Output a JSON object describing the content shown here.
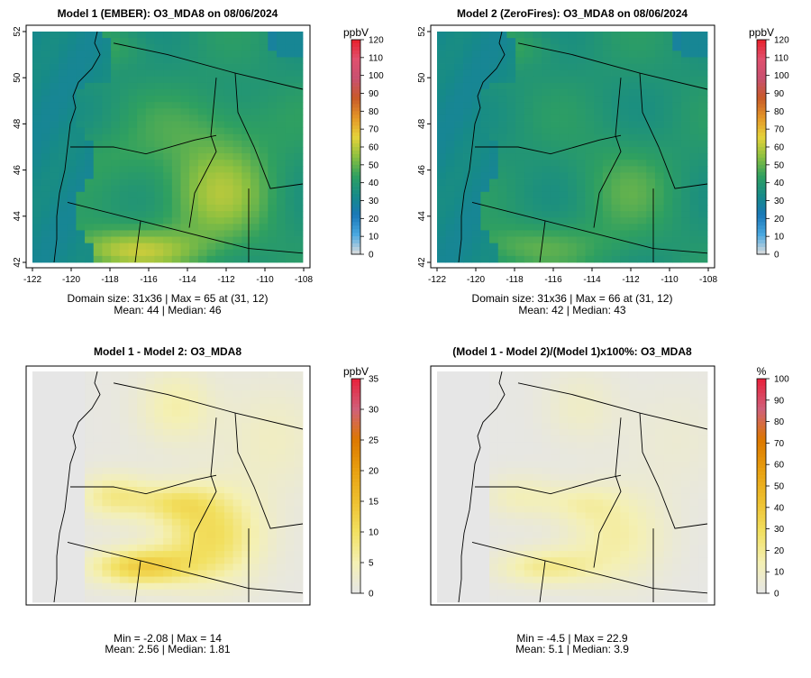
{
  "figure": {
    "panels": [
      {
        "id": "model1",
        "title": "Model 1 (EMBER): O3_MDA8 on 08/06/2024",
        "colorbar": {
          "unit": "ppbV",
          "ticks": [
            "0",
            "10",
            "20",
            "30",
            "40",
            "50",
            "60",
            "70",
            "80",
            "90",
            "100",
            "110",
            "120"
          ]
        },
        "stats": [
          "Domain size: 31x36 | Max = 65 at (31, 12)",
          "Mean: 44 |  Median: 46"
        ],
        "x_ticks": [
          "-122",
          "-120",
          "-118",
          "-116",
          "-114",
          "-112",
          "-110",
          "-108"
        ],
        "y_ticks": [
          "42",
          "44",
          "46",
          "48",
          "50",
          "52"
        ]
      },
      {
        "id": "model2",
        "title": "Model 2 (ZeroFires): O3_MDA8 on 08/06/2024",
        "colorbar": {
          "unit": "ppbV",
          "ticks": [
            "0",
            "10",
            "20",
            "30",
            "40",
            "50",
            "60",
            "70",
            "80",
            "90",
            "100",
            "110",
            "120"
          ]
        },
        "stats": [
          "Domain size: 31x36 | Max = 66 at (31, 12)",
          "Mean: 42 |  Median: 43"
        ],
        "x_ticks": [
          "-122",
          "-120",
          "-118",
          "-116",
          "-114",
          "-112",
          "-110",
          "-108"
        ],
        "y_ticks": [
          "42",
          "44",
          "46",
          "48",
          "50",
          "52"
        ]
      },
      {
        "id": "diff",
        "title": "Model 1 - Model 2: O3_MDA8",
        "colorbar": {
          "unit": "ppbV",
          "ticks": [
            "0",
            "5",
            "10",
            "15",
            "20",
            "25",
            "30",
            "35"
          ]
        },
        "stats": [
          "Min = -2.08 | Max = 14",
          "Mean: 2.56 |  Median: 1.81"
        ]
      },
      {
        "id": "pctdiff",
        "title": "(Model 1 - Model 2)/(Model 1)x100%: O3_MDA8",
        "colorbar": {
          "unit": "%",
          "ticks": [
            "0",
            "10",
            "20",
            "30",
            "40",
            "50",
            "60",
            "70",
            "80",
            "90",
            "100"
          ]
        },
        "stats": [
          "Min = -4.5 | Max = 22.9",
          "Mean: 5.1 |  Median: 3.9"
        ]
      }
    ]
  },
  "colors": {
    "ozone_scale": [
      "#dcdcdc",
      "#4aa8e0",
      "#1a78b8",
      "#168a88",
      "#2fa060",
      "#8cc040",
      "#e6d23a",
      "#e49628",
      "#c85a28",
      "#c85070",
      "#e0506e",
      "#e8202a"
    ],
    "diff_scale": [
      "#e6e6e6",
      "#f4f0b4",
      "#f2e060",
      "#eec030",
      "#e8a010",
      "#dc7800",
      "#d0607a",
      "#e8203a"
    ],
    "ocean": "#4aa8e0",
    "land_base": "#1a78b8"
  },
  "chart_data": [
    {
      "type": "heatmap",
      "title": "Model 1 (EMBER): O3_MDA8 on 08/06/2024",
      "xlim": [
        -122,
        -108
      ],
      "ylim": [
        42,
        52
      ],
      "colorbar": {
        "label": "ppbV",
        "range": [
          0,
          120
        ]
      },
      "grid": [
        31,
        36
      ],
      "max": 65,
      "max_at": [
        31,
        12
      ],
      "mean": 44,
      "median": 46
    },
    {
      "type": "heatmap",
      "title": "Model 2 (ZeroFires): O3_MDA8 on 08/06/2024",
      "xlim": [
        -122,
        -108
      ],
      "ylim": [
        42,
        52
      ],
      "colorbar": {
        "label": "ppbV",
        "range": [
          0,
          120
        ]
      },
      "grid": [
        31,
        36
      ],
      "max": 66,
      "max_at": [
        31,
        12
      ],
      "mean": 42,
      "median": 43
    },
    {
      "type": "heatmap",
      "title": "Model 1 - Model 2: O3_MDA8",
      "colorbar": {
        "label": "ppbV",
        "range": [
          0,
          35
        ]
      },
      "min": -2.08,
      "max": 14,
      "mean": 2.56,
      "median": 1.81
    },
    {
      "type": "heatmap",
      "title": "(Model 1 - Model 2)/(Model 1)x100%: O3_MDA8",
      "colorbar": {
        "label": "%",
        "range": [
          0,
          100
        ]
      },
      "min": -4.5,
      "max": 22.9,
      "mean": 5.1,
      "median": 3.9
    }
  ]
}
